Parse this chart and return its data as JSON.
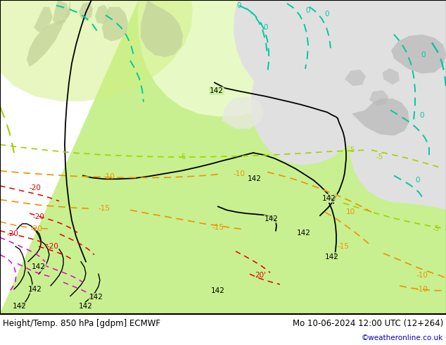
{
  "title_left": "Height/Temp. 850 hPa [gdpm] ECMWF",
  "title_right": "Mo 10-06-2024 12:00 UTC (12+264)",
  "copyright": "©weatheronline.co.uk",
  "map_bg_green": "#c8f090",
  "map_bg_light_green": "#d8f8a8",
  "land_gray": "#b8b8b8",
  "water_light": "#e0e0e0",
  "footer_bg": "#ffffff",
  "figsize": [
    6.34,
    4.9
  ],
  "dpi": 100,
  "green_line": "#a0d000",
  "cyan_line": "#00c8a0",
  "orange_line": "#f09000",
  "red_line": "#e00000",
  "pink_line": "#e800c8",
  "black_line": "#000000"
}
